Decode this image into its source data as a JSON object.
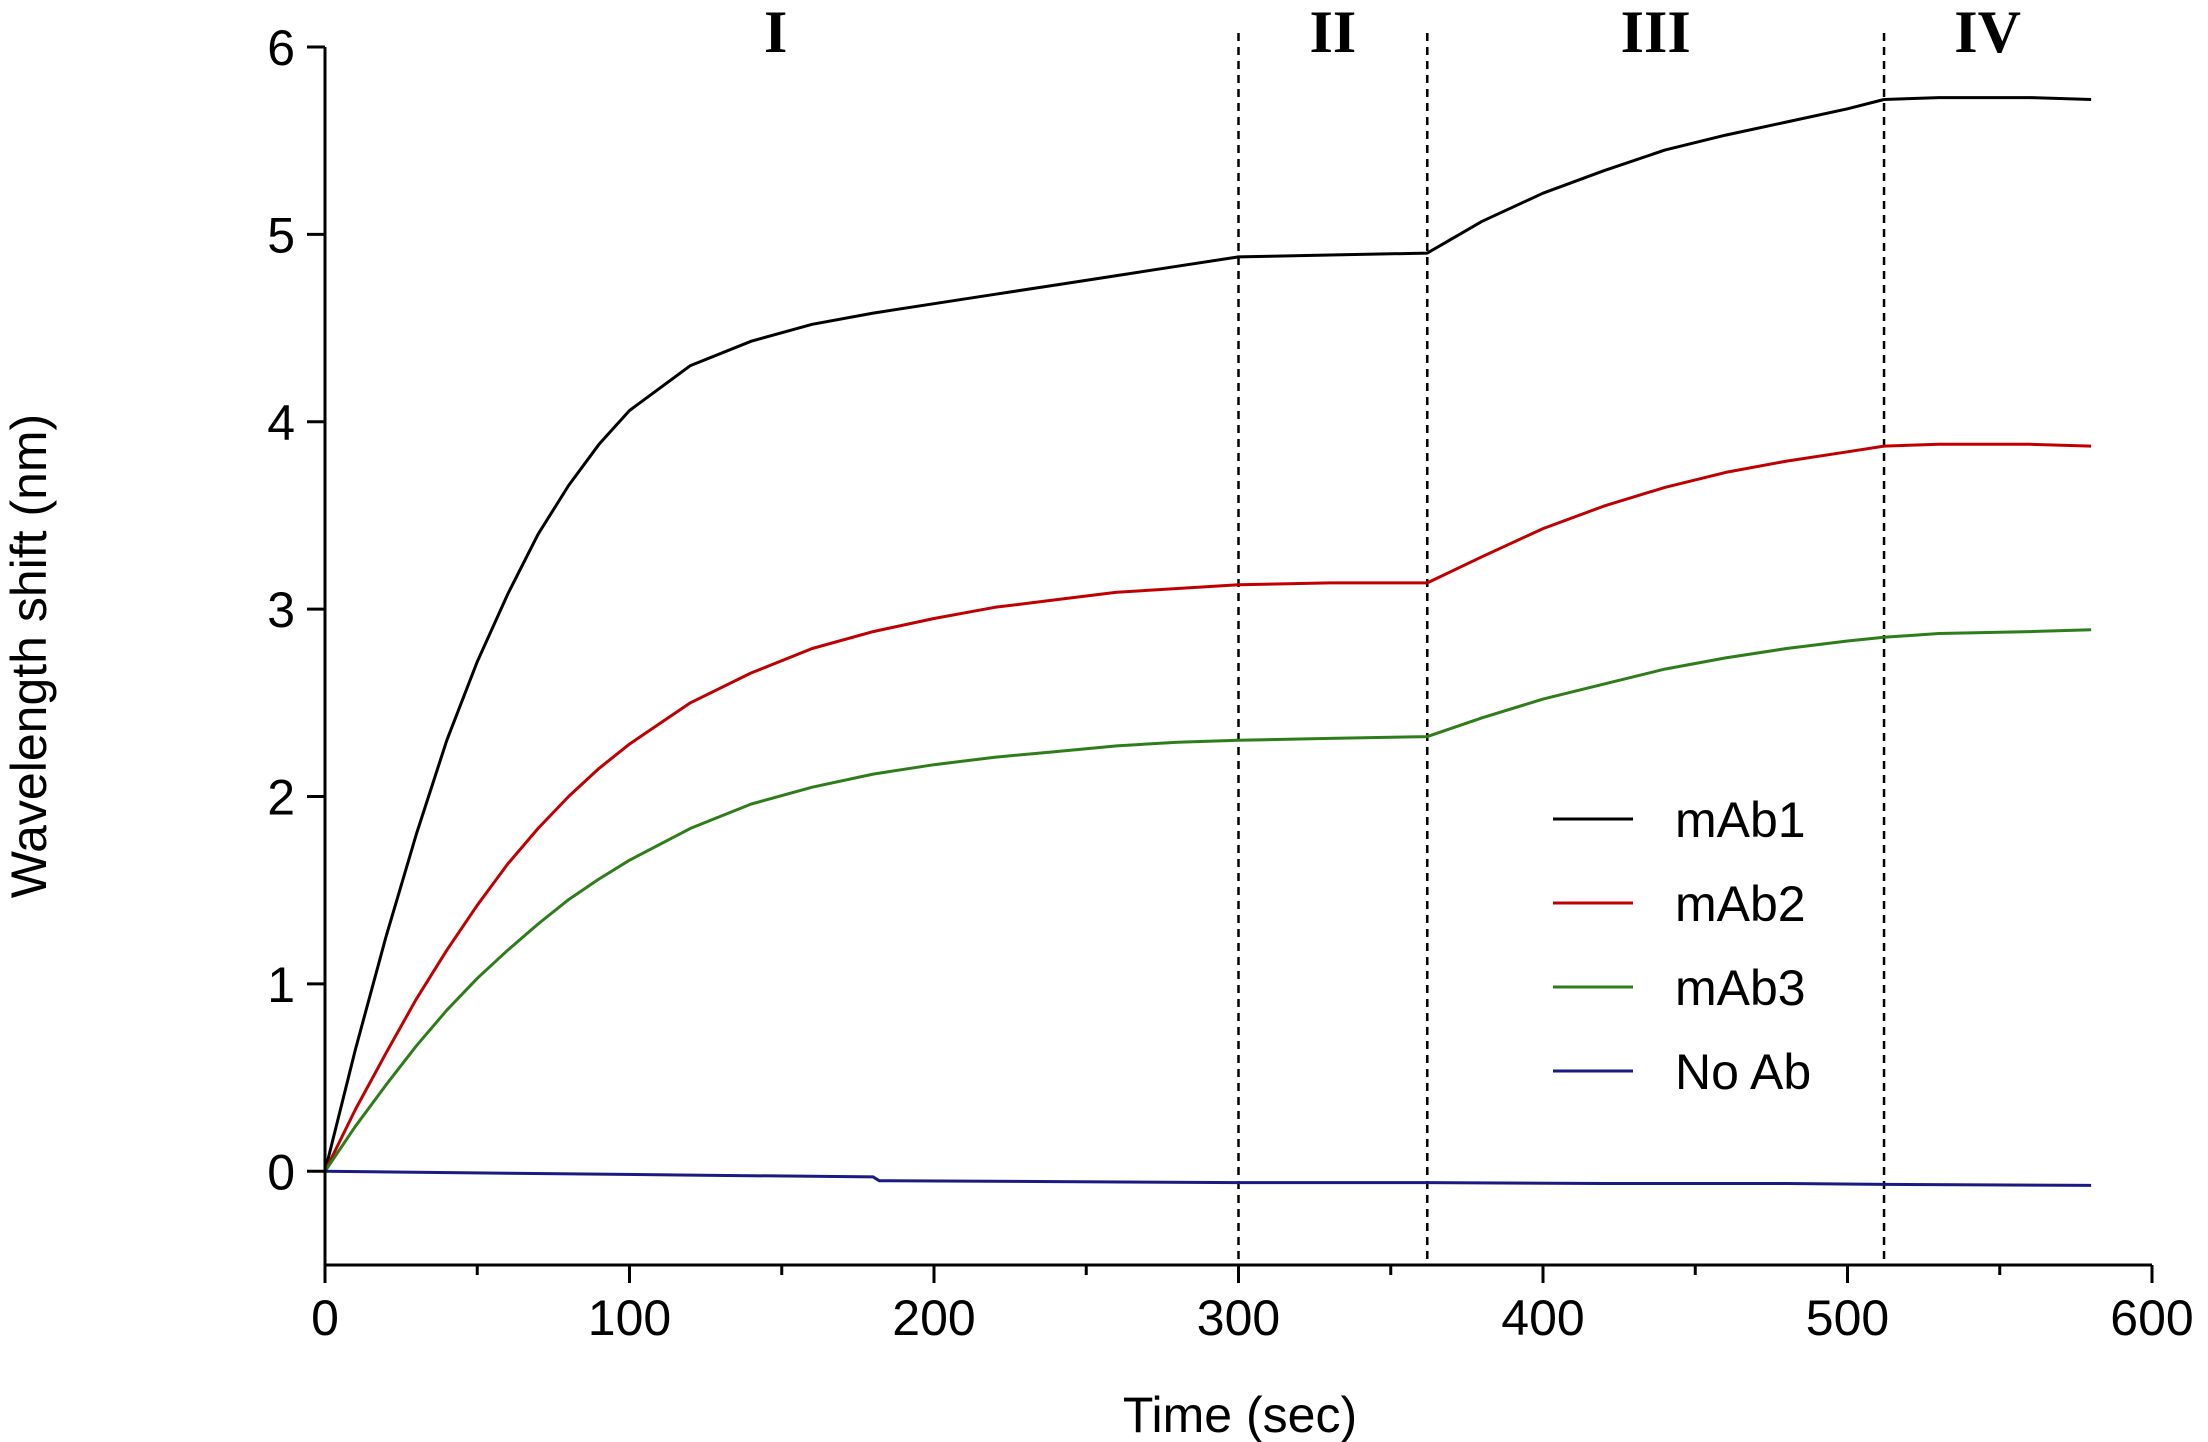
{
  "chart_data": {
    "type": "line",
    "title": "",
    "xlabel": "Time (sec)",
    "ylabel": "Wavelength shift (nm)",
    "xlim": [
      0,
      600
    ],
    "ylim": [
      -0.5,
      6
    ],
    "xticks": [
      0,
      100,
      200,
      300,
      400,
      500,
      600
    ],
    "yticks": [
      0,
      1,
      2,
      3,
      4,
      5,
      6
    ],
    "x_minor_ticks": [
      50,
      150,
      250,
      350,
      450,
      550
    ],
    "phase_boundaries": [
      300,
      362,
      512
    ],
    "phases": [
      {
        "label": "I",
        "x": 148
      },
      {
        "label": "II",
        "x": 331
      },
      {
        "label": "III",
        "x": 437
      },
      {
        "label": "IV",
        "x": 546
      }
    ],
    "legend_position": "right-middle",
    "series": [
      {
        "name": "mAb1",
        "color": "#000000",
        "x": [
          0,
          10,
          20,
          30,
          40,
          50,
          60,
          70,
          80,
          90,
          100,
          120,
          140,
          160,
          180,
          200,
          220,
          240,
          260,
          280,
          300,
          330,
          362,
          380,
          400,
          420,
          440,
          460,
          480,
          500,
          512,
          530,
          560,
          580
        ],
        "y": [
          0.0,
          0.65,
          1.25,
          1.8,
          2.3,
          2.72,
          3.08,
          3.4,
          3.66,
          3.88,
          4.06,
          4.3,
          4.43,
          4.52,
          4.58,
          4.63,
          4.68,
          4.73,
          4.78,
          4.83,
          4.88,
          4.89,
          4.9,
          5.07,
          5.22,
          5.34,
          5.45,
          5.53,
          5.6,
          5.67,
          5.72,
          5.73,
          5.73,
          5.72
        ]
      },
      {
        "name": "mAb2",
        "color": "#c00000",
        "x": [
          0,
          10,
          20,
          30,
          40,
          50,
          60,
          70,
          80,
          90,
          100,
          120,
          140,
          160,
          180,
          200,
          220,
          240,
          260,
          280,
          300,
          330,
          362,
          380,
          400,
          420,
          440,
          460,
          480,
          500,
          512,
          530,
          560,
          580
        ],
        "y": [
          0.0,
          0.33,
          0.63,
          0.92,
          1.18,
          1.42,
          1.64,
          1.83,
          2.0,
          2.15,
          2.28,
          2.5,
          2.66,
          2.79,
          2.88,
          2.95,
          3.01,
          3.05,
          3.09,
          3.11,
          3.13,
          3.14,
          3.14,
          3.28,
          3.43,
          3.55,
          3.65,
          3.73,
          3.79,
          3.84,
          3.87,
          3.88,
          3.88,
          3.87
        ]
      },
      {
        "name": "mAb3",
        "color": "#2e7d1a",
        "x": [
          0,
          10,
          20,
          30,
          40,
          50,
          60,
          70,
          80,
          90,
          100,
          120,
          140,
          160,
          180,
          200,
          220,
          240,
          260,
          280,
          300,
          330,
          362,
          380,
          400,
          420,
          440,
          460,
          480,
          500,
          512,
          530,
          560,
          580
        ],
        "y": [
          0.0,
          0.24,
          0.46,
          0.67,
          0.86,
          1.03,
          1.18,
          1.32,
          1.45,
          1.56,
          1.66,
          1.83,
          1.96,
          2.05,
          2.12,
          2.17,
          2.21,
          2.24,
          2.27,
          2.29,
          2.3,
          2.31,
          2.32,
          2.42,
          2.52,
          2.6,
          2.68,
          2.74,
          2.79,
          2.83,
          2.85,
          2.87,
          2.88,
          2.89
        ]
      },
      {
        "name": "No Ab",
        "color": "#1a1a80",
        "x": [
          0,
          60,
          120,
          180,
          182,
          240,
          300,
          362,
          420,
          480,
          512,
          580
        ],
        "y": [
          0.0,
          -0.01,
          -0.02,
          -0.03,
          -0.05,
          -0.055,
          -0.06,
          -0.06,
          -0.065,
          -0.065,
          -0.07,
          -0.075
        ]
      }
    ]
  }
}
